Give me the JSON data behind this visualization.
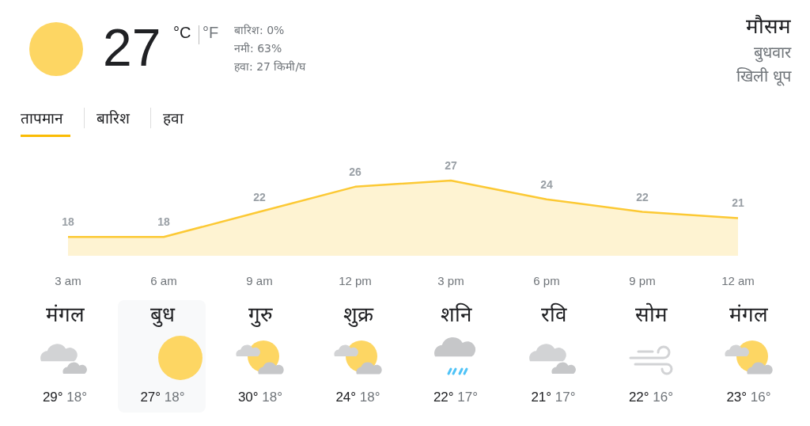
{
  "chart_data": {
    "type": "area",
    "categories": [
      "3 am",
      "6 am",
      "9 am",
      "12 pm",
      "3 pm",
      "6 pm",
      "9 pm",
      "12 am"
    ],
    "series": [
      {
        "color": "#fcc934",
        "values": [
          18,
          18,
          22,
          26,
          27,
          24,
          22,
          21
        ]
      }
    ],
    "data_labels": true,
    "tick_labels": "x",
    "grid": false,
    "legend": false,
    "annotations": [
      "27",
      "°C",
      "°F",
      "बारिश: 0%",
      "नमी: 63%",
      "हवा: 27 किमी/घ",
      "मौसम",
      "बुधवार",
      "खिली धूप",
      "तापमान",
      "बारिश",
      "हवा",
      "मंगल",
      "बुध",
      "गुरु",
      "शुक्र",
      "शनि",
      "रवि",
      "सोम",
      "मंगल",
      "29°",
      "18°",
      "27°",
      "18°",
      "30°",
      "18°",
      "24°",
      "18°",
      "22°",
      "17°",
      "21°",
      "17°",
      "22°",
      "16°",
      "23°",
      "16°"
    ]
  }
}
